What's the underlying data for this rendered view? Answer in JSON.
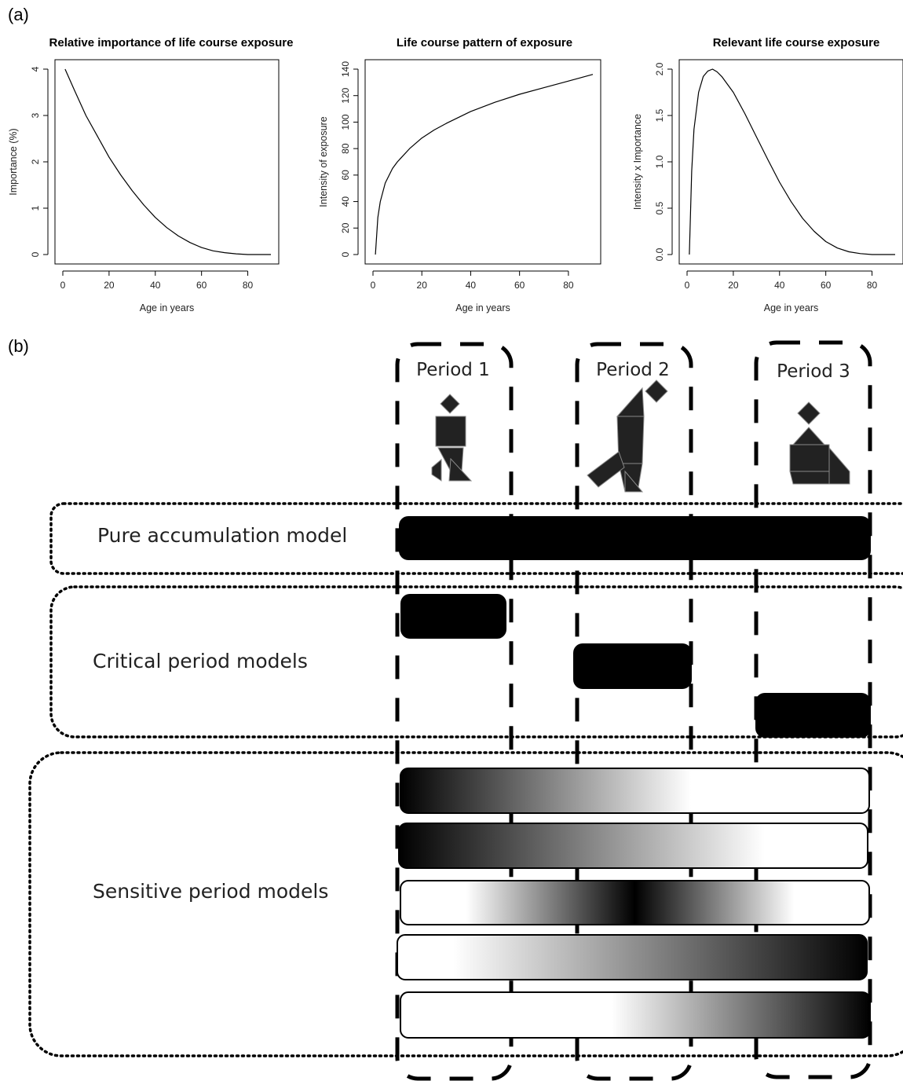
{
  "panel_a_label": "(a)",
  "panel_b_label": "(b)",
  "colors": {
    "ink": "#000000",
    "grid_dash": "#000000"
  },
  "chart_data": [
    {
      "type": "line",
      "title": "Relative importance of life course exposure",
      "xlabel": "Age in years",
      "ylabel": "Importance (%)",
      "xlim": [
        0,
        90
      ],
      "ylim": [
        0,
        4
      ],
      "xticks": [
        0,
        20,
        40,
        60,
        80
      ],
      "yticks": [
        0,
        1,
        2,
        3,
        4
      ],
      "x": [
        1,
        5,
        10,
        15,
        20,
        25,
        30,
        35,
        40,
        45,
        50,
        55,
        60,
        65,
        70,
        75,
        80,
        85,
        90
      ],
      "y": [
        4.0,
        3.55,
        3.0,
        2.55,
        2.1,
        1.72,
        1.38,
        1.07,
        0.8,
        0.58,
        0.4,
        0.26,
        0.15,
        0.08,
        0.04,
        0.015,
        0.0,
        0.0,
        0.0
      ]
    },
    {
      "type": "line",
      "title": "Life course pattern of exposure",
      "xlabel": "Age in years",
      "ylabel": "Intensity of exposure",
      "xlim": [
        0,
        90
      ],
      "ylim": [
        0,
        140
      ],
      "xticks": [
        0,
        20,
        40,
        60,
        80
      ],
      "yticks": [
        0,
        20,
        40,
        60,
        80,
        100,
        120,
        140
      ],
      "x": [
        1,
        2,
        3,
        5,
        8,
        10,
        15,
        20,
        25,
        30,
        40,
        50,
        60,
        70,
        80,
        90
      ],
      "y": [
        0,
        28,
        40,
        54,
        65,
        70,
        80,
        88,
        94,
        99,
        108,
        115,
        121,
        126,
        131,
        136
      ]
    },
    {
      "type": "line",
      "title": "Relevant life course exposure",
      "xlabel": "Age in years",
      "ylabel": "Intensity x Importance",
      "xlim": [
        0,
        90
      ],
      "ylim": [
        0,
        2.0
      ],
      "xticks": [
        0,
        20,
        40,
        60,
        80
      ],
      "yticks": [
        0.0,
        0.5,
        1.0,
        1.5,
        2.0
      ],
      "ytick_labels": [
        "0.0",
        "0.5",
        "1.0",
        "1.5",
        "2.0"
      ],
      "x": [
        1,
        2,
        3,
        5,
        7,
        9,
        11,
        13,
        15,
        20,
        25,
        30,
        35,
        40,
        45,
        50,
        55,
        60,
        65,
        70,
        75,
        80,
        85,
        90
      ],
      "y": [
        0.0,
        0.9,
        1.35,
        1.75,
        1.92,
        1.98,
        2.0,
        1.97,
        1.92,
        1.75,
        1.52,
        1.27,
        1.02,
        0.78,
        0.57,
        0.39,
        0.25,
        0.14,
        0.07,
        0.03,
        0.01,
        0.0,
        0.0,
        0.0
      ]
    }
  ],
  "panel_b": {
    "periods": [
      "Period 1",
      "Period 2",
      "Period 3"
    ],
    "period_icons": [
      "child-figure-icon",
      "adult-figure-icon",
      "elderly-figure-icon"
    ],
    "models": {
      "accumulation": "Pure accumulation model",
      "critical": "Critical period models",
      "sensitive": "Sensitive period models"
    }
  }
}
